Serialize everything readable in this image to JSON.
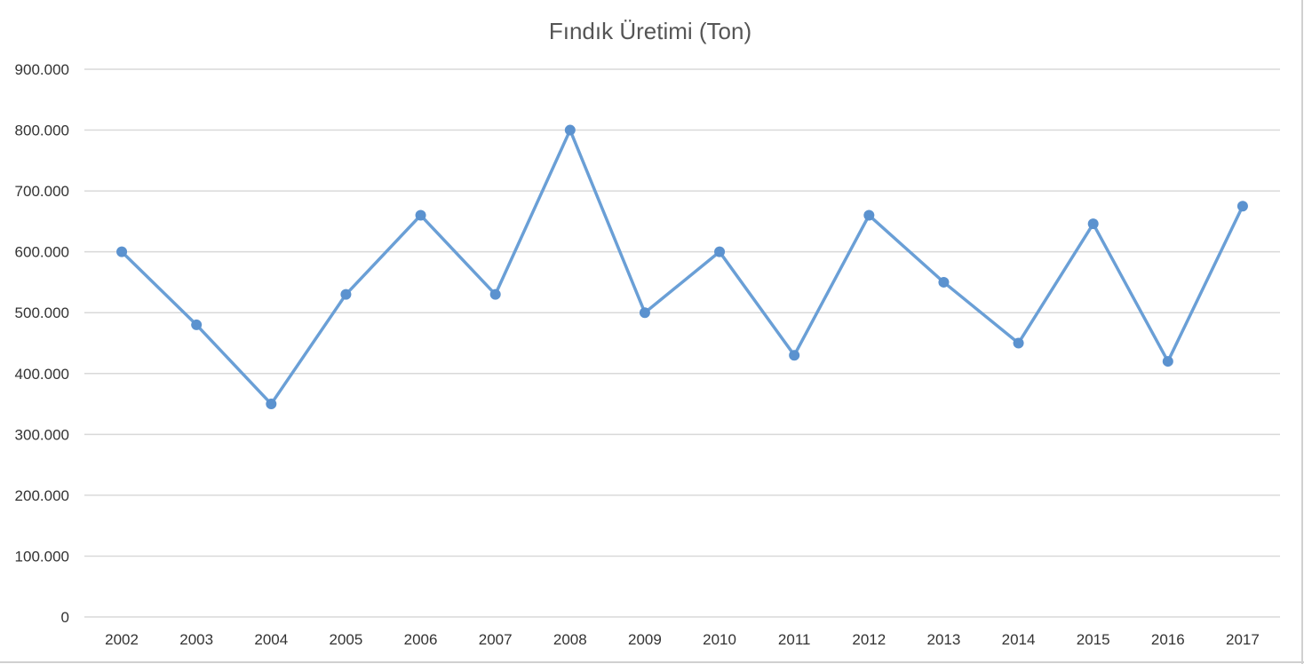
{
  "chart_data": {
    "type": "line",
    "title": "Fındık Üretimi (Ton)",
    "xlabel": "",
    "ylabel": "",
    "categories": [
      "2002",
      "2003",
      "2004",
      "2005",
      "2006",
      "2007",
      "2008",
      "2009",
      "2010",
      "2011",
      "2012",
      "2013",
      "2014",
      "2015",
      "2016",
      "2017"
    ],
    "series": [
      {
        "values": [
          600000,
          480000,
          350000,
          530000,
          660000,
          530000,
          800000,
          500000,
          600000,
          430000,
          660000,
          550000,
          450000,
          646000,
          420000,
          675000
        ]
      }
    ],
    "ylim": [
      0,
      900000
    ],
    "y_ticks": [
      "0",
      "100.000",
      "200.000",
      "300.000",
      "400.000",
      "500.000",
      "600.000",
      "700.000",
      "800.000",
      "900.000"
    ],
    "grid": true,
    "legend": "none",
    "colors": {
      "line": "#6a9fd6",
      "marker": "#5b92cf",
      "grid": "#d9d9d9"
    }
  }
}
